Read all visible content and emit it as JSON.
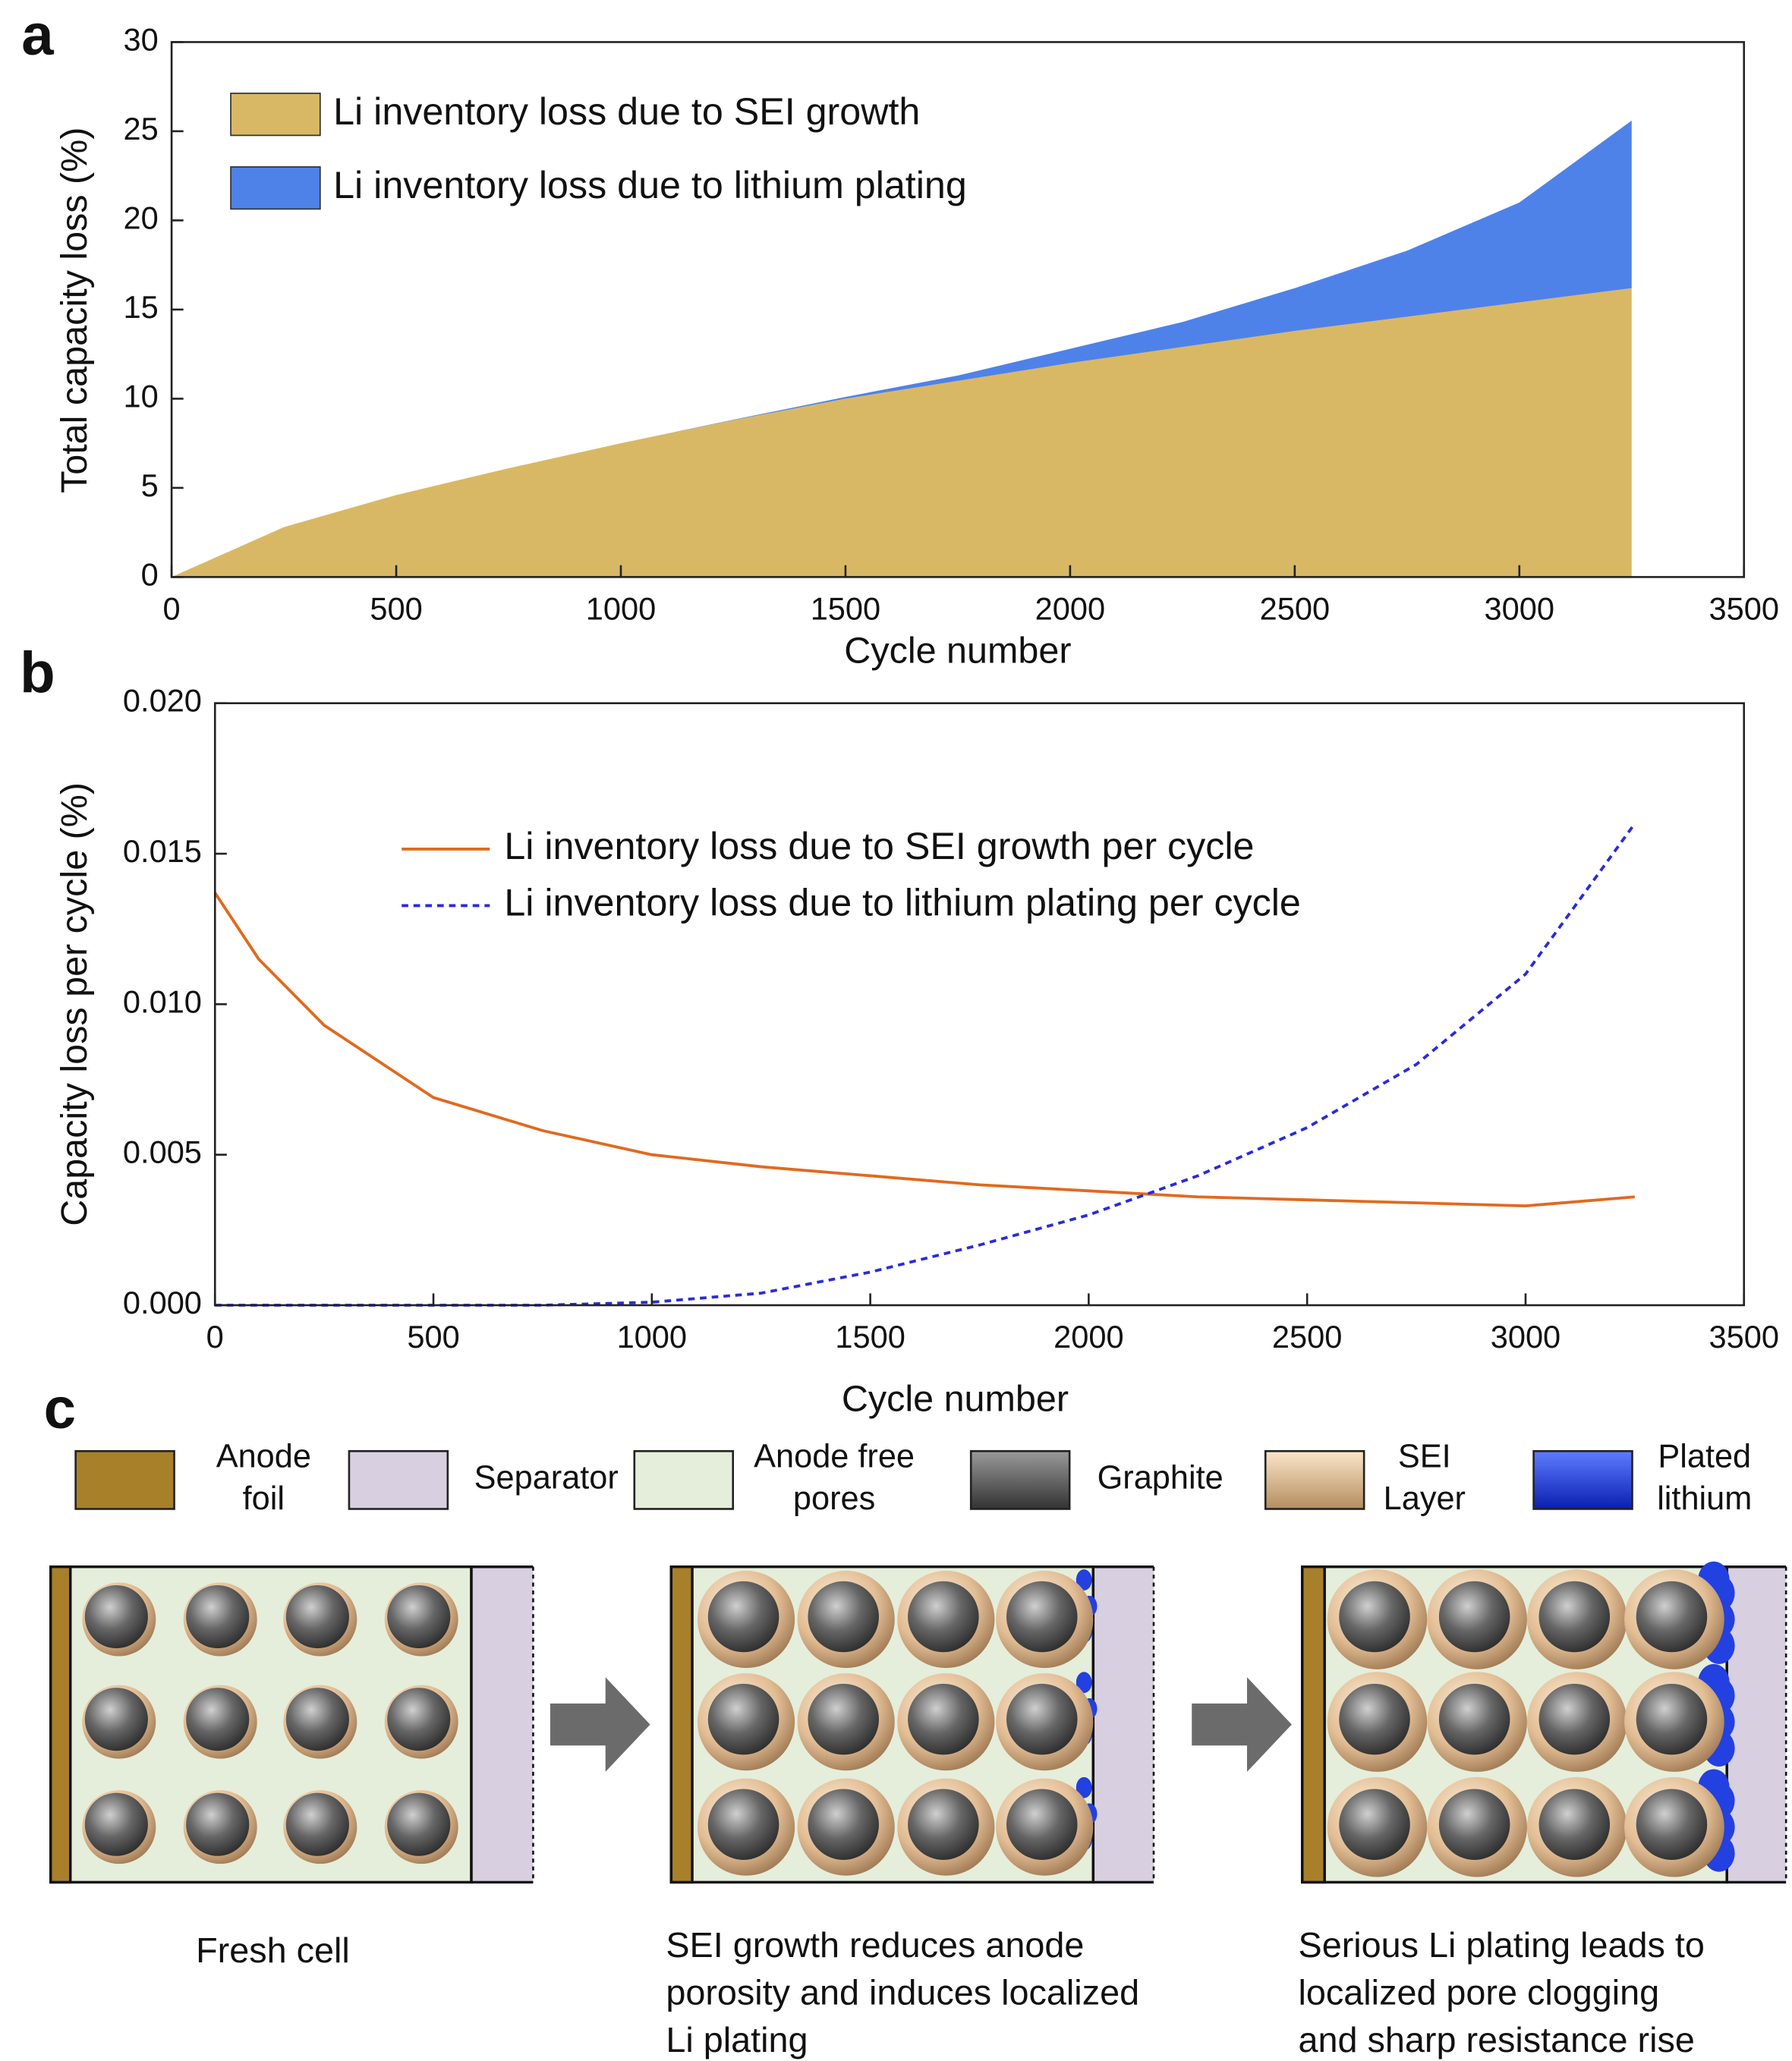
{
  "chart_data": [
    {
      "type": "area",
      "stacked": true,
      "panel_label": "a",
      "x_label": "Cycle number",
      "y_label": "Total capacity loss (%)",
      "x": [
        0,
        250,
        500,
        750,
        1000,
        1250,
        1500,
        1750,
        2000,
        2250,
        2500,
        2750,
        3000,
        3250
      ],
      "series": [
        {
          "name": "Li inventory loss due to SEI growth",
          "color": "#d9b865",
          "values": [
            0,
            2.8,
            4.6,
            6.1,
            7.5,
            8.8,
            10.0,
            11.0,
            12.0,
            12.9,
            13.8,
            14.6,
            15.4,
            16.2
          ]
        },
        {
          "name": "Li inventory loss due to lithium plating",
          "color": "#4f82e8",
          "values": [
            0,
            0,
            0,
            0,
            0,
            0.02,
            0.1,
            0.3,
            0.8,
            1.4,
            2.4,
            3.7,
            5.6,
            9.4
          ]
        }
      ],
      "xlim": [
        0,
        3500
      ],
      "xticks": [
        0,
        500,
        1000,
        1500,
        2000,
        2500,
        3000,
        3500
      ],
      "ylim": [
        0,
        30
      ],
      "yticks": [
        0,
        5,
        10,
        15,
        20,
        25,
        30
      ],
      "grid": false,
      "legend": "upper left"
    },
    {
      "type": "line",
      "panel_label": "b",
      "x_label": "Cycle number",
      "y_label": "Capacity loss per cycle (%)",
      "x": [
        0,
        100,
        250,
        500,
        750,
        1000,
        1250,
        1500,
        1750,
        2000,
        2250,
        2500,
        2750,
        3000,
        3250
      ],
      "series": [
        {
          "name": "Li inventory loss due to SEI growth per cycle",
          "color": "#e06a1e",
          "dash": false,
          "values": [
            0.0137,
            0.0115,
            0.0093,
            0.0069,
            0.0058,
            0.005,
            0.0046,
            0.0043,
            0.004,
            0.0038,
            0.0036,
            0.0035,
            0.0034,
            0.0033,
            0.0036
          ]
        },
        {
          "name": "Li inventory loss due to lithium plating per cycle",
          "color": "#2a2adf",
          "dash": true,
          "values": [
            0,
            0,
            0,
            0,
            0,
            0.0001,
            0.0004,
            0.0011,
            0.002,
            0.003,
            0.0043,
            0.0059,
            0.008,
            0.011,
            0.016
          ]
        }
      ],
      "xlim": [
        0,
        3500
      ],
      "xticks": [
        0,
        500,
        1000,
        1500,
        2000,
        2500,
        3000,
        3500
      ],
      "ylim": [
        0,
        0.02
      ],
      "yticks": [
        {
          "value": 0,
          "label": "0.000"
        },
        0.005,
        {
          "value": 0.01,
          "label": "0.010"
        },
        0.015,
        {
          "value": 0.02,
          "label": "0.020"
        }
      ],
      "grid": false,
      "legend": "upper center"
    }
  ],
  "diagram": {
    "panel_label": "c",
    "legend": [
      [
        "Anode",
        "foil"
      ],
      [
        "Separator"
      ],
      [
        "Anode free",
        "pores"
      ],
      [
        "Graphite"
      ],
      [
        "SEI",
        "Layer"
      ],
      [
        "Plated",
        "lithium"
      ]
    ],
    "captions": [
      [
        "Fresh cell"
      ],
      [
        "SEI growth reduces anode",
        "porosity and induces localized",
        "Li plating"
      ],
      [
        "Serious Li plating leads to",
        "localized pore clogging",
        "and sharp resistance rise"
      ]
    ]
  }
}
